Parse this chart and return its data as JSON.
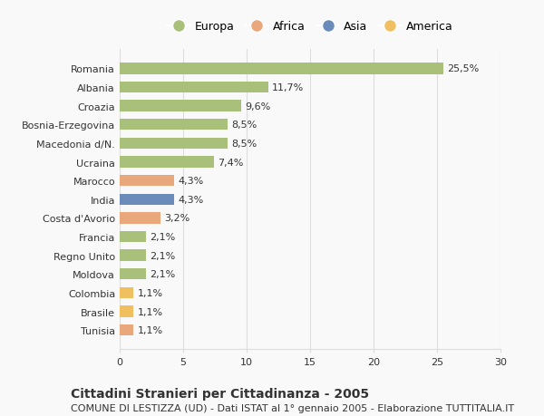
{
  "categories": [
    "Romania",
    "Albania",
    "Croazia",
    "Bosnia-Erzegovina",
    "Macedonia d/N.",
    "Ucraina",
    "Marocco",
    "India",
    "Costa d'Avorio",
    "Francia",
    "Regno Unito",
    "Moldova",
    "Colombia",
    "Brasile",
    "Tunisia"
  ],
  "values": [
    25.5,
    11.7,
    9.6,
    8.5,
    8.5,
    7.4,
    4.3,
    4.3,
    3.2,
    2.1,
    2.1,
    2.1,
    1.1,
    1.1,
    1.1
  ],
  "labels": [
    "25,5%",
    "11,7%",
    "9,6%",
    "8,5%",
    "8,5%",
    "7,4%",
    "4,3%",
    "4,3%",
    "3,2%",
    "2,1%",
    "2,1%",
    "2,1%",
    "1,1%",
    "1,1%",
    "1,1%"
  ],
  "continents": [
    "Europa",
    "Europa",
    "Europa",
    "Europa",
    "Europa",
    "Europa",
    "Africa",
    "Asia",
    "Africa",
    "Europa",
    "Europa",
    "Europa",
    "America",
    "America",
    "Africa"
  ],
  "colors": {
    "Europa": "#a8c07a",
    "Africa": "#e8a87c",
    "Asia": "#6b8cba",
    "America": "#f0c060"
  },
  "legend_order": [
    "Europa",
    "Africa",
    "Asia",
    "America"
  ],
  "xlim": [
    0,
    30
  ],
  "xticks": [
    0,
    5,
    10,
    15,
    20,
    25,
    30
  ],
  "title": "Cittadini Stranieri per Cittadinanza - 2005",
  "subtitle": "COMUNE DI LESTIZZA (UD) - Dati ISTAT al 1° gennaio 2005 - Elaborazione TUTTITALIA.IT",
  "background_color": "#f9f9f9",
  "bar_height": 0.6,
  "grid_color": "#dddddd",
  "text_color": "#333333",
  "title_fontsize": 10,
  "subtitle_fontsize": 8,
  "tick_fontsize": 8,
  "label_fontsize": 8
}
